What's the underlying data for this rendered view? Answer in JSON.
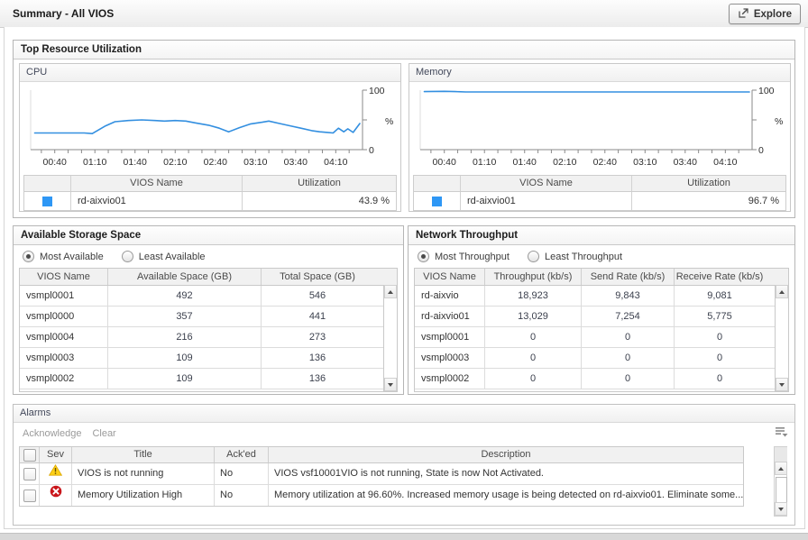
{
  "titlebar": {
    "title": "Summary - All VIOS",
    "explore_label": "Explore"
  },
  "top_resource": {
    "title": "Top Resource Utilization",
    "cpu": {
      "title": "CPU",
      "legend_headers": {
        "name": "VIOS Name",
        "utilization": "Utilization"
      },
      "legend_rows": [
        {
          "name": "rd-aixvio01",
          "utilization": "43.9 %"
        }
      ]
    },
    "memory": {
      "title": "Memory",
      "legend_headers": {
        "name": "VIOS Name",
        "utilization": "Utilization"
      },
      "legend_rows": [
        {
          "name": "rd-aixvio01",
          "utilization": "96.7 %"
        }
      ]
    }
  },
  "storage": {
    "title": "Available Storage Space",
    "radios": [
      {
        "label": "Most Available",
        "selected": true
      },
      {
        "label": "Least Available",
        "selected": false
      }
    ],
    "headers": [
      "VIOS Name",
      "Available Space (GB)",
      "Total Space (GB)"
    ],
    "rows": [
      [
        "vsmpl0001",
        "492",
        "546"
      ],
      [
        "vsmpl0000",
        "357",
        "441"
      ],
      [
        "vsmpl0004",
        "216",
        "273"
      ],
      [
        "vsmpl0003",
        "109",
        "136"
      ],
      [
        "vsmpl0002",
        "109",
        "136"
      ]
    ]
  },
  "network": {
    "title": "Network Throughput",
    "radios": [
      {
        "label": "Most Throughput",
        "selected": true
      },
      {
        "label": "Least Throughput",
        "selected": false
      }
    ],
    "headers": [
      "VIOS Name",
      "Throughput (kb/s)",
      "Send Rate (kb/s)",
      "Receive Rate (kb/s)"
    ],
    "rows": [
      [
        "rd-aixvio",
        "18,923",
        "9,843",
        "9,081"
      ],
      [
        "rd-aixvio01",
        "13,029",
        "7,254",
        "5,775"
      ],
      [
        "vsmpl0001",
        "0",
        "0",
        "0"
      ],
      [
        "vsmpl0003",
        "0",
        "0",
        "0"
      ],
      [
        "vsmpl0002",
        "0",
        "0",
        "0"
      ]
    ]
  },
  "alarms": {
    "title": "Alarms",
    "toolbar": {
      "acknowledge": "Acknowledge",
      "clear": "Clear"
    },
    "headers": {
      "sev": "Sev",
      "title": "Title",
      "acked": "Ack'ed",
      "description": "Description"
    },
    "rows": [
      {
        "sev": "warning",
        "title": "VIOS is not running",
        "acked": "No",
        "description": "VIOS vsf10001VIO is not running, State is now Not Activated."
      },
      {
        "sev": "error",
        "title": "Memory Utilization High",
        "acked": "No",
        "description": "Memory utilization at 96.60%. Increased memory usage is being detected on rd-aixvio01. Eliminate some..."
      }
    ]
  },
  "colors": {
    "series_blue": "#338fe0",
    "legend_swatch": "#2e97f5",
    "warning_yellow": "#fdd017",
    "error_red": "#c9151a"
  },
  "chart_data": [
    {
      "type": "line",
      "title": "CPU",
      "xlabel": "",
      "ylabel": "%",
      "ylim": [
        0,
        100
      ],
      "x_tick_labels": [
        "00:40",
        "01:10",
        "01:40",
        "02:10",
        "02:40",
        "03:10",
        "03:40",
        "04:10"
      ],
      "series": [
        {
          "name": "rd-aixvio01",
          "color": "#338fe0",
          "x_minutes": [
            25,
            62,
            68,
            78,
            85,
            95,
            105,
            115,
            122,
            130,
            138,
            145,
            155,
            163,
            170,
            178,
            186,
            195,
            200,
            208,
            216,
            224,
            232,
            238,
            244,
            248,
            252,
            256,
            259,
            263,
            268
          ],
          "values": [
            28,
            28,
            27,
            40,
            47,
            49,
            50,
            49,
            48,
            49,
            48,
            45,
            41,
            36,
            30,
            37,
            43,
            46,
            48,
            44,
            40,
            36,
            32,
            30,
            29,
            28,
            36,
            30,
            35,
            29,
            44
          ]
        }
      ]
    },
    {
      "type": "line",
      "title": "Memory",
      "xlabel": "",
      "ylabel": "%",
      "ylim": [
        0,
        100
      ],
      "x_tick_labels": [
        "00:40",
        "01:10",
        "01:40",
        "02:10",
        "02:40",
        "03:10",
        "03:40",
        "04:10"
      ],
      "series": [
        {
          "name": "rd-aixvio01",
          "color": "#338fe0",
          "x_minutes": [
            25,
            40,
            48,
            56,
            70,
            100,
            130,
            160,
            190,
            220,
            250,
            268
          ],
          "values": [
            97.5,
            98,
            97.5,
            97,
            97,
            97,
            97,
            97,
            97,
            97,
            97,
            97
          ]
        }
      ]
    }
  ]
}
